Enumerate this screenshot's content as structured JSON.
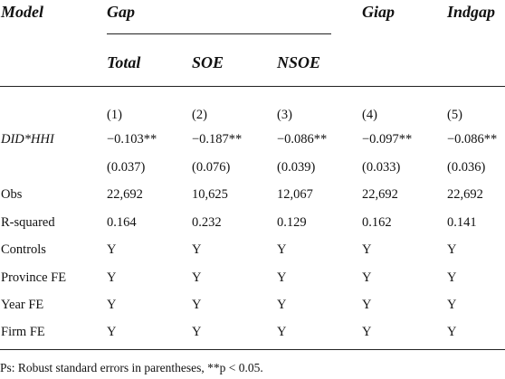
{
  "header": {
    "model": "Model",
    "gap": "Gap",
    "giap": "Giap",
    "indgap": "Indgap",
    "sub": [
      "Total",
      "SOE",
      "NSOE"
    ]
  },
  "numbers": [
    "(1)",
    "(2)",
    "(3)",
    "(4)",
    "(5)"
  ],
  "rows": [
    {
      "label": "DID*HHI",
      "italic": true,
      "cells": [
        "−0.103**",
        "−0.187**",
        "−0.086**",
        "−0.097**",
        "−0.086**"
      ]
    },
    {
      "label": "",
      "italic": false,
      "cells": [
        "(0.037)",
        "(0.076)",
        "(0.039)",
        "(0.033)",
        "(0.036)"
      ]
    },
    {
      "label": "Obs",
      "italic": false,
      "cells": [
        "22,692",
        "10,625",
        "12,067",
        "22,692",
        "22,692"
      ]
    },
    {
      "label": "R-squared",
      "italic": false,
      "cells": [
        "0.164",
        "0.232",
        "0.129",
        "0.162",
        "0.141"
      ]
    },
    {
      "label": "Controls",
      "italic": false,
      "cells": [
        "Y",
        "Y",
        "Y",
        "Y",
        "Y"
      ]
    },
    {
      "label": "Province FE",
      "italic": false,
      "cells": [
        "Y",
        "Y",
        "Y",
        "Y",
        "Y"
      ]
    },
    {
      "label": "Year FE",
      "italic": false,
      "cells": [
        "Y",
        "Y",
        "Y",
        "Y",
        "Y"
      ]
    },
    {
      "label": "Firm FE",
      "italic": false,
      "cells": [
        "Y",
        "Y",
        "Y",
        "Y",
        "Y"
      ]
    }
  ],
  "note": "Ps: Robust standard errors in parentheses, **p < 0.05."
}
